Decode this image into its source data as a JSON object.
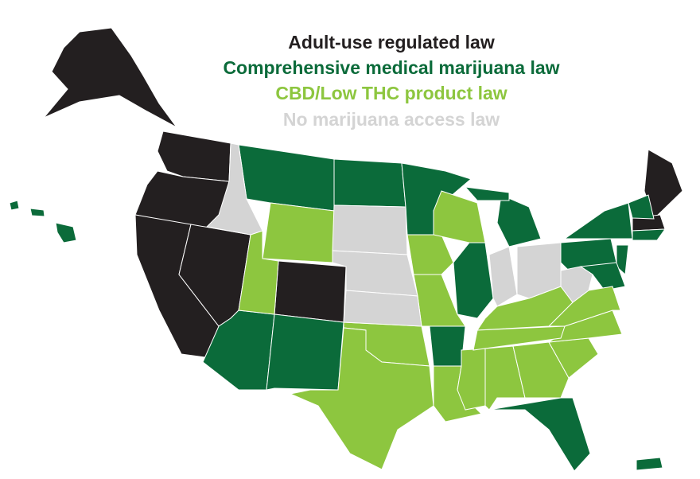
{
  "legend": [
    {
      "label": "Adult-use regulated law",
      "color": "#231f20"
    },
    {
      "label": "Comprehensive medical marijuana law",
      "color": "#0b6b3a"
    },
    {
      "label": "CBD/Low THC product law",
      "color": "#8dc63f"
    },
    {
      "label": "No marijuana access law",
      "color": "#d4d4d4"
    }
  ]
}
